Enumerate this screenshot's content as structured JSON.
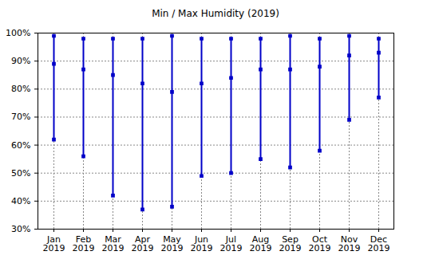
{
  "chart_data": {
    "type": "range",
    "title": "Min / Max Humidity (2019)",
    "categories": [
      "Jan 2019",
      "Feb 2019",
      "Mar 2019",
      "Apr 2019",
      "May 2019",
      "Jun 2019",
      "Jul 2019",
      "Aug 2019",
      "Sep 2019",
      "Oct 2019",
      "Nov 2019",
      "Dec 2019"
    ],
    "low": [
      62,
      56,
      42,
      37,
      38,
      49,
      50,
      55,
      52,
      58,
      69,
      77
    ],
    "mid": [
      89,
      87,
      85,
      82,
      79,
      82,
      84,
      87,
      87,
      88,
      92,
      93
    ],
    "high": [
      99,
      98,
      98,
      98,
      99,
      98,
      98,
      98,
      99,
      98,
      99,
      98
    ],
    "color": "#0000c8",
    "marker": "square",
    "ylim": [
      30,
      100
    ],
    "yticks": [
      {
        "value": 30,
        "label": "30%"
      },
      {
        "value": 40,
        "label": "40%"
      },
      {
        "value": 50,
        "label": "50%"
      },
      {
        "value": 60,
        "label": "60%"
      },
      {
        "value": 70,
        "label": "70%"
      },
      {
        "value": 80,
        "label": "80%"
      },
      {
        "value": 90,
        "label": "90%"
      },
      {
        "value": 100,
        "label": "100%"
      }
    ],
    "grid": true
  }
}
